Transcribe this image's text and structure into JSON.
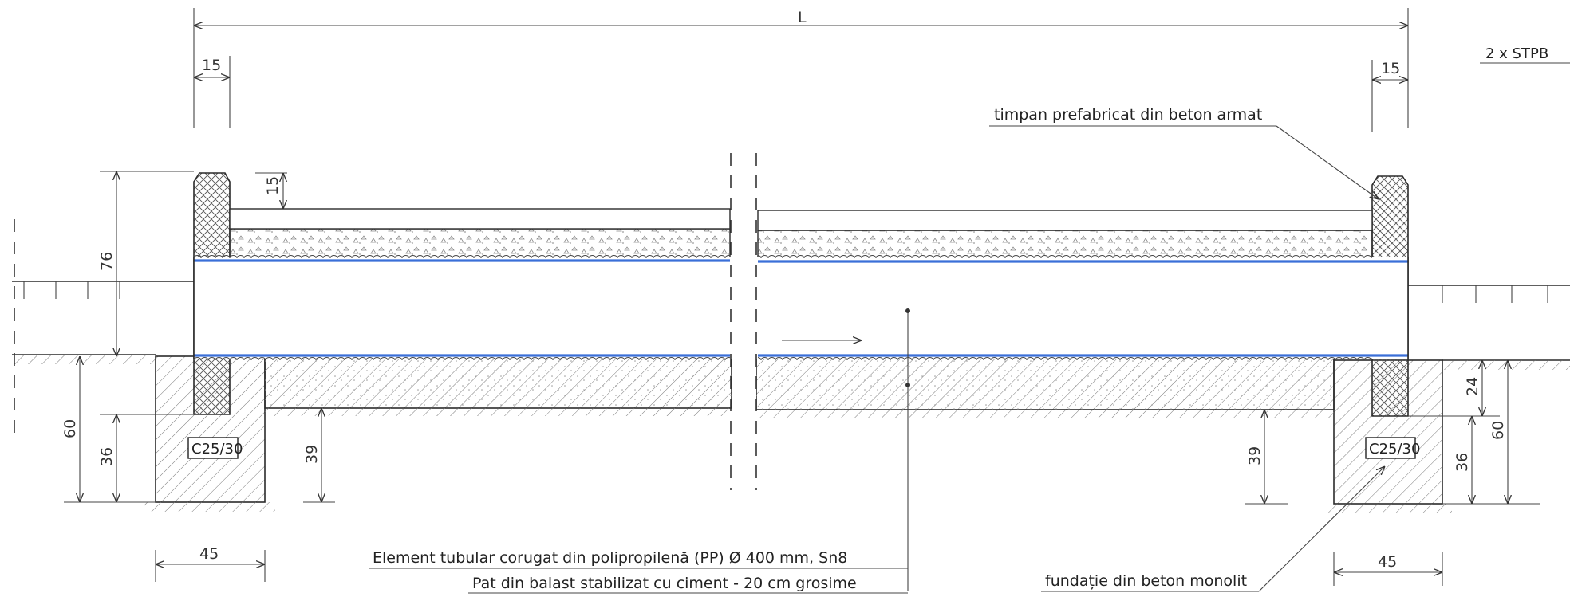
{
  "dimensions": {
    "length": "L",
    "left_top_wall": "15",
    "right_top_wall": "15",
    "cover_thickness": "15",
    "height_total": "76",
    "left_foundation_depth": "60",
    "left_wall_embed": "36",
    "bed_depth_left": "39",
    "bed_depth_right": "39",
    "right_embed_top": "24",
    "right_wall_embed": "36",
    "right_foundation_depth": "60",
    "left_foundation_width": "45",
    "right_foundation_width": "45"
  },
  "labels": {
    "concrete_class_left": "C25/30",
    "concrete_class_right": "C25/30",
    "headwall": "timpan prefabricat din beton armat",
    "foundation": "fundație din beton monolit",
    "pipe": "Element tubular corugat din polipropilenă (PP) Ø 400 mm, Sn8",
    "bedding": "Pat din balast stabilizat cu ciment - 20 cm grosime",
    "partial_top_right": "2 x  STPB"
  },
  "colors": {
    "pipe_line": "#3a6fd8",
    "linework": "#2b2b2b"
  }
}
